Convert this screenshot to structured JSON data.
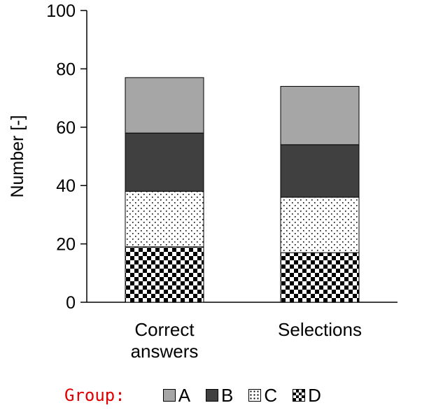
{
  "chart_data": {
    "type": "bar",
    "stacked": true,
    "categories": [
      "Correct\nanswers",
      "Selections"
    ],
    "series": [
      {
        "name": "D",
        "values": [
          19,
          17
        ],
        "fill": "checker"
      },
      {
        "name": "C",
        "values": [
          19,
          19
        ],
        "fill": "dots"
      },
      {
        "name": "B",
        "values": [
          20,
          18
        ],
        "fill": "#404040"
      },
      {
        "name": "A",
        "values": [
          19,
          20
        ],
        "fill": "#a6a6a6"
      }
    ],
    "title": "",
    "xlabel": "",
    "ylabel": "Number [-]",
    "ylim": [
      0,
      100
    ],
    "yticks": [
      0,
      20,
      40,
      60,
      80,
      100
    ],
    "grid": false,
    "legend_position": "bottom"
  },
  "legend": {
    "prefix": "Group:",
    "entries": [
      {
        "label": "A",
        "fill": "#a6a6a6"
      },
      {
        "label": "B",
        "fill": "#404040"
      },
      {
        "label": "C",
        "fill": "dots"
      },
      {
        "label": "D",
        "fill": "checker"
      }
    ]
  }
}
